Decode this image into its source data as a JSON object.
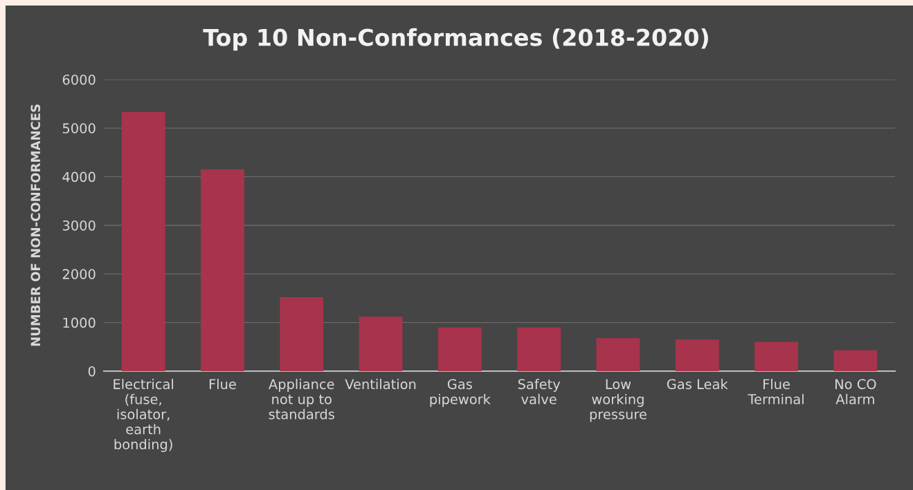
{
  "chart_data": {
    "type": "bar",
    "title": "Top 10 Non-Conformances (2018-2020)",
    "ylabel": "NUMBER OF NON-CONFORMANCES",
    "categories": [
      "Electrical (fuse, isolator, earth bonding)",
      "Flue",
      "Appliance not up to standards",
      "Ventilation",
      "Gas pipework",
      "Safety valve",
      "Low working pressure",
      "Gas Leak",
      "Flue Terminal",
      "No CO Alarm"
    ],
    "values": [
      5330,
      4150,
      1520,
      1120,
      900,
      900,
      680,
      650,
      600,
      430
    ],
    "color": "#a8334c",
    "ylim": [
      0,
      6000
    ],
    "yticks": [
      0,
      1000,
      2000,
      3000,
      4000,
      5000,
      6000
    ],
    "grid": "y"
  }
}
